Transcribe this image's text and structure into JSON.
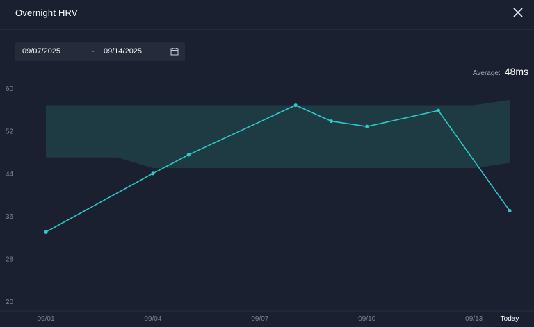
{
  "title": "Overnight HRV",
  "date_range": {
    "start": "09/07/2025",
    "separator": "-",
    "end": "09/14/2025"
  },
  "average": {
    "label": "Average:",
    "value": "48ms"
  },
  "icons": {
    "close": "close-icon",
    "calendar": "calendar-icon"
  },
  "colors": {
    "line": "#2ec9c9",
    "band": "#1f4047",
    "background": "#1b2030"
  },
  "chart_data": {
    "type": "line",
    "ylim": [
      20,
      60
    ],
    "yticks": [
      20,
      28,
      36,
      44,
      52,
      60
    ],
    "xlim": [
      0,
      13
    ],
    "xticks": [
      {
        "x": 0,
        "label": "09/01"
      },
      {
        "x": 3,
        "label": "09/04"
      },
      {
        "x": 6,
        "label": "09/07"
      },
      {
        "x": 9,
        "label": "09/10"
      },
      {
        "x": 12,
        "label": "09/13"
      },
      {
        "x": 13,
        "label": "Today"
      }
    ],
    "series": [
      {
        "points": [
          {
            "x": 0,
            "y": 33
          },
          {
            "x": 3,
            "y": 44
          },
          {
            "x": 4,
            "y": 47.5
          },
          {
            "x": 7,
            "y": 56.8
          },
          {
            "x": 8,
            "y": 53.8
          },
          {
            "x": 9,
            "y": 52.8
          },
          {
            "x": 11,
            "y": 55.8
          },
          {
            "x": 13,
            "y": 37
          }
        ]
      }
    ],
    "band": {
      "upper": [
        {
          "x": 0,
          "y": 56.8
        },
        {
          "x": 12,
          "y": 56.8
        },
        {
          "x": 13,
          "y": 57.8
        }
      ],
      "lower": [
        {
          "x": 0,
          "y": 47
        },
        {
          "x": 2,
          "y": 47
        },
        {
          "x": 3,
          "y": 45
        },
        {
          "x": 12,
          "y": 45
        },
        {
          "x": 13,
          "y": 46
        }
      ]
    },
    "grid": false,
    "legend": "none"
  }
}
